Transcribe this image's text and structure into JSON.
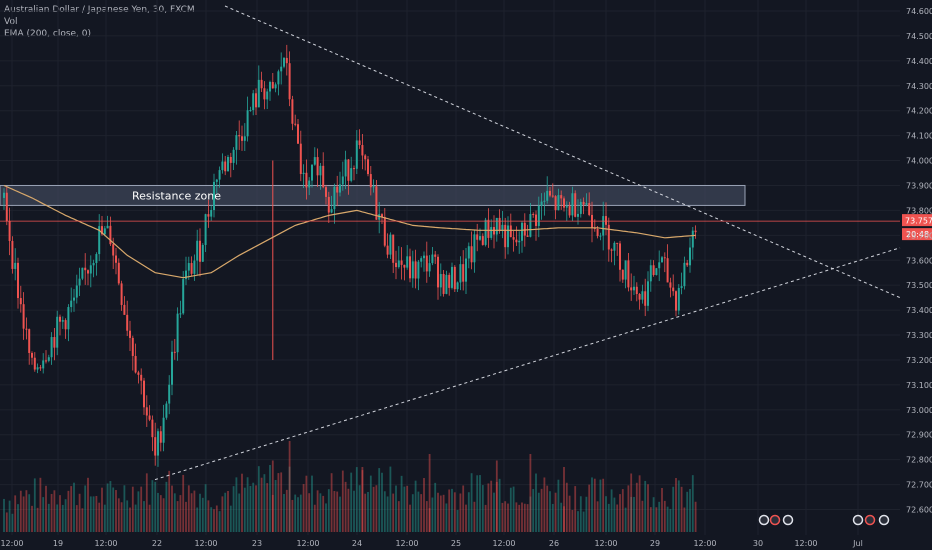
{
  "legend": {
    "symbol_line": "Australian Dollar / Japanese Yen, 30, FXCM",
    "vol_line": "Vol",
    "ema_line": "EMA (200, close, 0)"
  },
  "colors": {
    "background": "#131722",
    "up": "#26a69a",
    "down": "#ef5350",
    "ema": "#d8a86b",
    "resistance_fill": "#3e4658",
    "resistance_border": "#9aa3b6",
    "price_line": "#ef5350",
    "trendline": "#d1d4dc",
    "axis_text": "#b2b5be"
  },
  "chart_data": {
    "type": "candlestick",
    "title": "Australian Dollar / Japanese Yen, 30, FXCM",
    "y_axis_labels": [
      "74.600",
      "74.500",
      "74.400",
      "74.300",
      "74.200",
      "74.100",
      "74.000",
      "73.900",
      "73.800",
      "73.700",
      "73.600",
      "73.500",
      "73.400",
      "73.300",
      "73.200",
      "73.100",
      "73.000",
      "72.900",
      "72.800",
      "72.700",
      "72.600"
    ],
    "ylim": [
      72.57,
      74.62
    ],
    "x_axis_labels": [
      "12:00",
      "19",
      "12:00",
      "22",
      "12:00",
      "23",
      "12:00",
      "24",
      "12:00",
      "25",
      "12:00",
      "26",
      "12:00",
      "29",
      "12:00",
      "30",
      "12:00",
      "Jul"
    ],
    "last_price": "73.757",
    "countdown": "20:48",
    "price_line_value": 73.757,
    "annotation": "Resistance zone",
    "resistance_zone": [
      73.82,
      73.9
    ],
    "ohlc_keypoints": [
      [
        0,
        73.85
      ],
      [
        4,
        73.55
      ],
      [
        10,
        73.15
      ],
      [
        18,
        73.3
      ],
      [
        26,
        73.45
      ],
      [
        34,
        73.7
      ],
      [
        38,
        73.7
      ],
      [
        44,
        73.35
      ],
      [
        50,
        73.05
      ],
      [
        54,
        72.8
      ],
      [
        58,
        73.05
      ],
      [
        64,
        73.5
      ],
      [
        70,
        73.65
      ],
      [
        76,
        73.95
      ],
      [
        80,
        74.0
      ],
      [
        84,
        74.1
      ],
      [
        88,
        74.2
      ],
      [
        92,
        74.3
      ],
      [
        96,
        74.25
      ],
      [
        100,
        74.42
      ],
      [
        104,
        74.1
      ],
      [
        108,
        73.85
      ],
      [
        112,
        74.0
      ],
      [
        116,
        73.85
      ],
      [
        120,
        73.9
      ],
      [
        126,
        74.05
      ],
      [
        132,
        73.85
      ],
      [
        136,
        73.7
      ],
      [
        140,
        73.6
      ],
      [
        146,
        73.55
      ],
      [
        152,
        73.6
      ],
      [
        158,
        73.5
      ],
      [
        164,
        73.55
      ],
      [
        170,
        73.7
      ],
      [
        176,
        73.75
      ],
      [
        182,
        73.65
      ],
      [
        188,
        73.75
      ],
      [
        194,
        73.85
      ],
      [
        200,
        73.8
      ],
      [
        206,
        73.85
      ],
      [
        212,
        73.75
      ],
      [
        216,
        73.7
      ],
      [
        222,
        73.55
      ],
      [
        228,
        73.45
      ],
      [
        234,
        73.6
      ],
      [
        240,
        73.45
      ],
      [
        244,
        73.6
      ],
      [
        247,
        73.757
      ]
    ],
    "ema_keypoints": [
      [
        0,
        73.9
      ],
      [
        10,
        73.85
      ],
      [
        22,
        73.78
      ],
      [
        34,
        73.72
      ],
      [
        44,
        73.62
      ],
      [
        54,
        73.55
      ],
      [
        64,
        73.53
      ],
      [
        74,
        73.55
      ],
      [
        84,
        73.62
      ],
      [
        94,
        73.68
      ],
      [
        104,
        73.74
      ],
      [
        116,
        73.78
      ],
      [
        126,
        73.8
      ],
      [
        136,
        73.77
      ],
      [
        146,
        73.74
      ],
      [
        156,
        73.73
      ],
      [
        170,
        73.72
      ],
      [
        184,
        73.72
      ],
      [
        198,
        73.73
      ],
      [
        212,
        73.73
      ],
      [
        226,
        73.71
      ],
      [
        236,
        73.69
      ],
      [
        247,
        73.7
      ]
    ],
    "volume_profile": [
      0.35,
      0.4,
      0.45,
      0.5,
      0.55,
      0.5,
      0.45,
      0.4,
      0.5,
      0.55,
      0.6,
      0.7,
      0.65,
      0.55,
      0.5,
      0.45,
      0.5,
      0.6,
      0.7,
      0.8,
      0.7,
      0.6,
      0.55,
      0.6,
      0.7,
      0.75,
      0.8,
      0.7,
      0.6,
      0.55,
      0.5,
      0.45,
      0.5,
      0.55,
      0.6,
      0.65,
      0.6,
      0.55,
      0.6,
      0.55,
      0.5,
      0.45,
      0.45,
      0.5,
      0.55,
      0.6,
      0.55,
      0.5,
      0.45,
      0.5
    ],
    "n_candles": 248
  },
  "events": [
    "event-icons-30",
    "event-icons-jul"
  ]
}
